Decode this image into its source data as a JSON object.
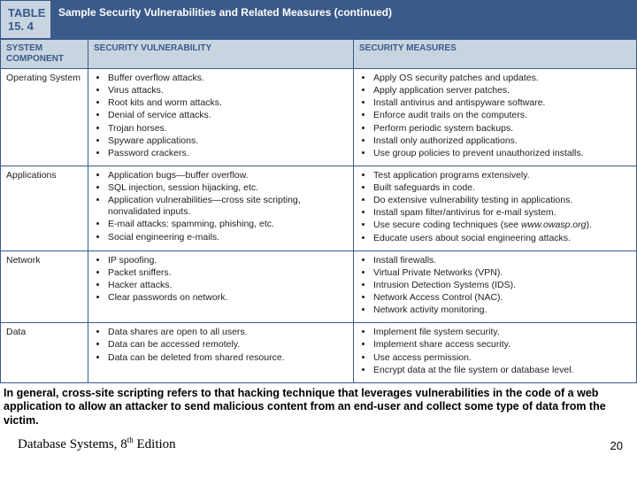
{
  "table": {
    "number_label": "TABLE 15. 4",
    "title": "Sample Security Vulnerabilities and Related Measures (continued)",
    "headers": {
      "col1": "SYSTEM COMPONENT",
      "col2": "SECURITY VULNERABILITY",
      "col3": "SECURITY MEASURES"
    },
    "rows": [
      {
        "component": "Operating System",
        "vulns": [
          "Buffer overflow attacks.",
          "Virus attacks.",
          "Root kits and worm attacks.",
          "Denial of service attacks.",
          "Trojan horses.",
          "Spyware applications.",
          "Password crackers."
        ],
        "measures": [
          "Apply OS security patches and updates.",
          "Apply application server patches.",
          "Install antivirus and antispyware software.",
          "Enforce audit trails on the computers.",
          "Perform periodic system backups.",
          "Install only authorized applications.",
          "Use group policies to prevent unauthorized installs."
        ]
      },
      {
        "component": "Applications",
        "vulns": [
          "Application bugs—buffer overflow.",
          "SQL injection, session hijacking, etc.",
          "Application vulnerabilities—cross site scripting, nonvalidated inputs.",
          "E-mail attacks: spamming, phishing, etc.",
          "Social engineering e-mails."
        ],
        "measures_html": [
          "Test application programs extensively.",
          "Built safeguards in code.",
          "Do extensive vulnerability testing in applications.",
          "Install spam filter/antivirus for e-mail system.",
          "Use secure coding techniques (see <span class=\"italic\">www.owasp.org</span>).",
          "Educate users about social engineering attacks."
        ]
      },
      {
        "component": "Network",
        "vulns": [
          "IP spoofing.",
          "Packet sniffers.",
          "Hacker attacks.",
          "Clear passwords on network."
        ],
        "measures": [
          "Install firewalls.",
          "Virtual Private Networks (VPN).",
          "Intrusion Detection Systems (IDS).",
          "Network Access Control (NAC).",
          "Network activity monitoring."
        ]
      },
      {
        "component": "Data",
        "vulns": [
          "Data shares are open to all users.",
          "Data can be accessed remotely.",
          "Data can be deleted from shared resource."
        ],
        "measures": [
          "Implement file system security.",
          "Implement share access security.",
          "Use access permission.",
          "Encrypt data at the file system or database level."
        ]
      }
    ]
  },
  "caption": "In general, cross-site scripting refers to that hacking technique that leverages vulnerabilities in the code of a web application to allow an attacker to send malicious content from an end-user and collect some type of data from the victim.",
  "footer": {
    "book_prefix": "Database Systems, 8",
    "book_suffix": " Edition",
    "ordinal": "th",
    "page": "20"
  },
  "colors": {
    "header_bg": "#3a5a8a",
    "light_bg": "#c8d4e0",
    "border": "#3a5a8a",
    "text": "#222222"
  }
}
